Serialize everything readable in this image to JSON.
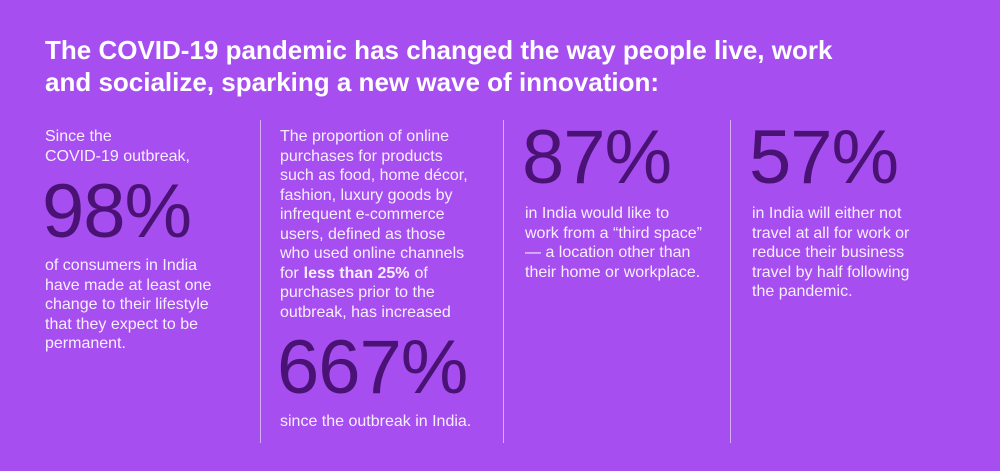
{
  "title_lines": [
    "The COVID-19 pandemic has changed the way people live, work",
    "and socialize, sparking a new wave of innovation:"
  ],
  "columns": [
    {
      "intro_lines": [
        "Since the",
        "COVID-19 outbreak,"
      ],
      "stat": "98%",
      "detail_lines": [
        "of consumers in India",
        "have made at least one",
        "change to their lifestyle",
        "that they expect to be",
        "permanent."
      ]
    },
    {
      "intro_lines": [
        "The proportion of online",
        "purchases for products",
        "such as food, home décor,",
        "fashion, luxury goods by",
        "infrequent e-commerce",
        "users, defined as those",
        "who used online channels"
      ],
      "intro_emphasis": {
        "before": "for",
        "bold": "less than 25%",
        "after": "of"
      },
      "intro_tail_lines": [
        "purchases prior to the",
        "outbreak, has increased"
      ],
      "stat": "667%",
      "detail_lines": [
        "since the outbreak in India."
      ]
    },
    {
      "stat": "87%",
      "detail_lines": [
        "in India would like to",
        "work from a “third space”",
        "— a location other than",
        "their home or workplace."
      ]
    },
    {
      "stat": "57%",
      "detail_lines": [
        "in India will either not",
        "travel at all for work or",
        "reduce their business",
        "travel by half following",
        "the pandemic."
      ]
    }
  ]
}
